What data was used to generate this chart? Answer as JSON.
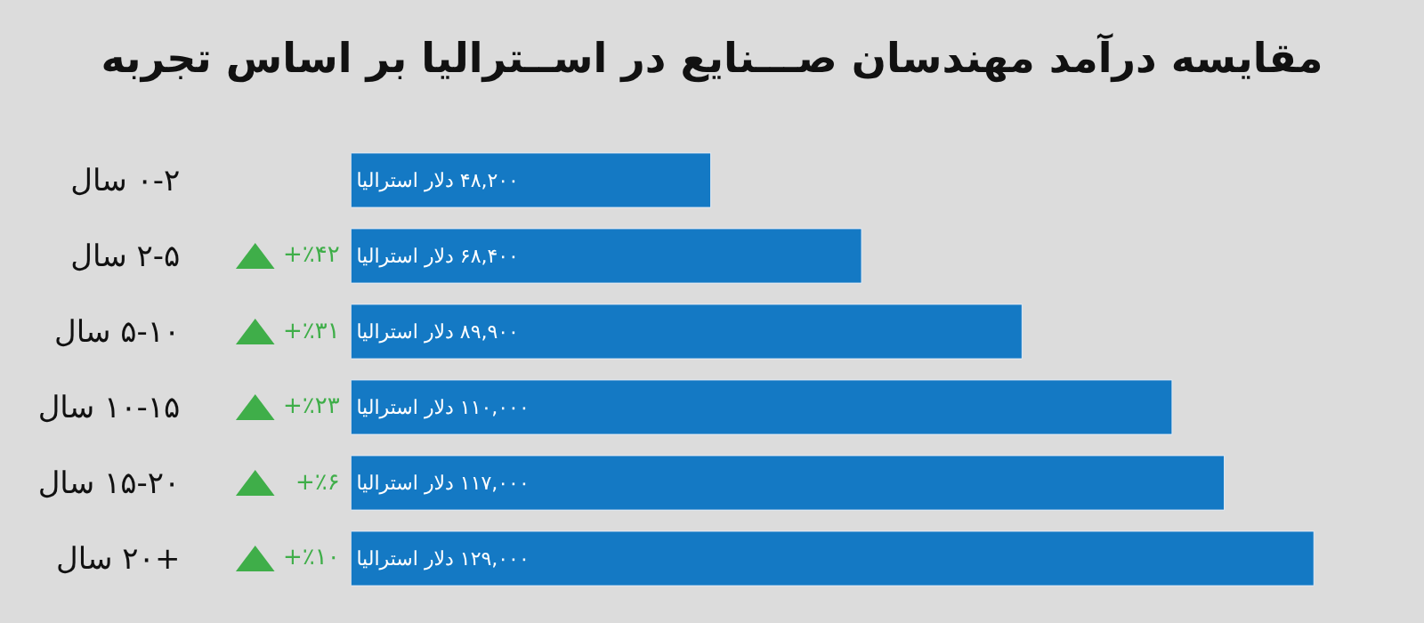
{
  "chart_data": {
    "type": "bar",
    "orientation": "horizontal",
    "title": "مقایسه درآمد مهندسان صـــنایع در اســترالیا بر اساس تجربه",
    "categories": [
      "۰-۲ سال",
      "۲-۵ سال",
      "۵-۱۰ سال",
      "۱۰-۱۵ سال",
      "۱۵-۲۰ سال",
      "+۲۰ سال"
    ],
    "values": [
      48200,
      68400,
      89900,
      110000,
      117000,
      129000
    ],
    "color": "#1479c4",
    "value_labels": [
      "۴۸,۲۰۰ دلار استرالیا",
      "۶۸,۴۰۰ دلار استرالیا",
      "۸۹,۹۰۰ دلار استرالیا",
      "۱۱۰,۰۰۰ دلار استرالیا",
      "۱۱۷,۰۰۰ دلار استرالیا",
      "۱۲۹,۰۰۰ دلار استرالیا"
    ],
    "annotations": [
      "+٪۴۲",
      "+٪۳۱",
      "+٪۲۳",
      "+٪۶",
      "+٪۱۰"
    ]
  }
}
